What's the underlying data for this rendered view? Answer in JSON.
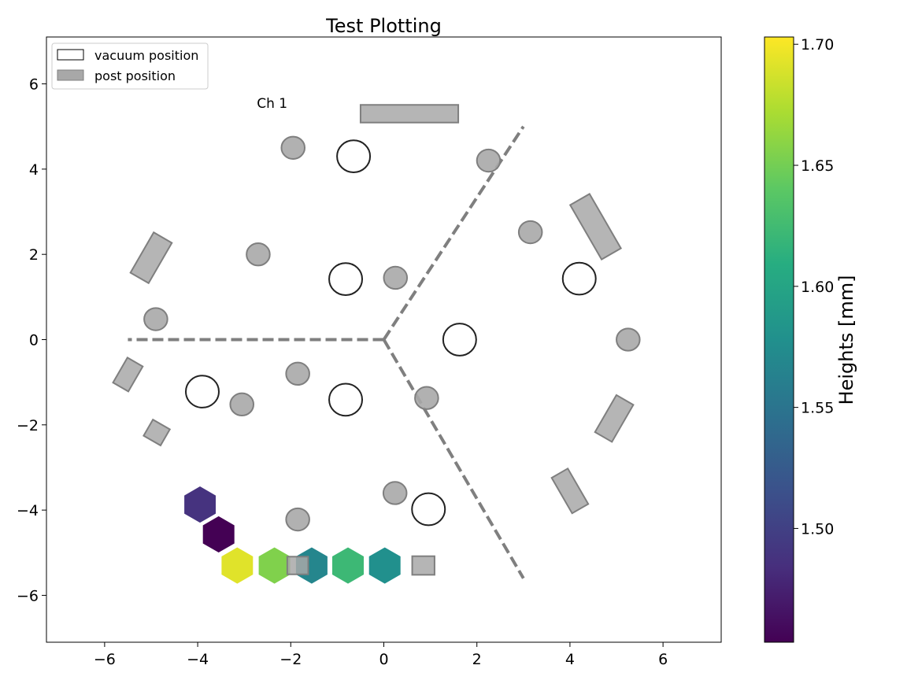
{
  "chart_data": {
    "type": "scatter",
    "title": "Test Plotting",
    "xlim": [
      -7.25,
      7.25
    ],
    "ylim": [
      -7.1,
      7.1
    ],
    "xticks": [
      -6,
      -4,
      -2,
      0,
      2,
      4,
      6
    ],
    "yticks": [
      -6,
      -4,
      -2,
      0,
      2,
      4,
      6
    ],
    "tick_labels": {
      "x": [
        "−6",
        "−4",
        "−2",
        "0",
        "2",
        "4",
        "6"
      ],
      "y": [
        "−6",
        "−4",
        "−2",
        "0",
        "2",
        "4",
        "6"
      ]
    },
    "grid": false,
    "legend": {
      "placement": "top-left",
      "entries": [
        {
          "label": "vacuum position",
          "style": "outline"
        },
        {
          "label": "post position",
          "style": "filled",
          "color": "#a8a8a8"
        }
      ]
    },
    "annotation": {
      "text": "Ch 1",
      "x": -2.4,
      "y": 5.55
    },
    "colorbar": {
      "label": "Heights [mm]",
      "colormap": "viridis",
      "range": [
        1.453,
        1.703
      ],
      "ticks": [
        1.5,
        1.55,
        1.6,
        1.65,
        1.7
      ],
      "tick_labels": [
        "1.50",
        "1.55",
        "1.60",
        "1.65",
        "1.70"
      ]
    },
    "colors": {
      "post": "#a8a8a8",
      "post_edge": "#7f7f7f",
      "divider": "#7f7f7f",
      "vacuum_edge": "#222222"
    },
    "vacuum_positions": [
      {
        "x": -0.65,
        "y": 4.3
      },
      {
        "x": -0.82,
        "y": 1.42
      },
      {
        "x": 4.2,
        "y": 1.43
      },
      {
        "x": 1.63,
        "y": 0.0
      },
      {
        "x": -3.9,
        "y": -1.22
      },
      {
        "x": -0.82,
        "y": -1.41
      },
      {
        "x": 0.96,
        "y": -3.98
      }
    ],
    "post_circles": [
      {
        "x": -1.95,
        "y": 4.5
      },
      {
        "x": 2.25,
        "y": 4.2
      },
      {
        "x": -2.7,
        "y": 2.0
      },
      {
        "x": 0.25,
        "y": 1.45
      },
      {
        "x": 3.15,
        "y": 2.52
      },
      {
        "x": -4.9,
        "y": 0.48
      },
      {
        "x": 5.25,
        "y": 0.0
      },
      {
        "x": -1.85,
        "y": -0.8
      },
      {
        "x": -3.05,
        "y": -1.52
      },
      {
        "x": 0.92,
        "y": -1.37
      },
      {
        "x": 0.24,
        "y": -3.6
      },
      {
        "x": -1.85,
        "y": -4.22
      }
    ],
    "post_rects": [
      {
        "x": 0.55,
        "y": 5.3,
        "w": 2.1,
        "h": 0.38,
        "angle": 0
      },
      {
        "x": -5.0,
        "y": 1.92,
        "w": 1.0,
        "h": 0.45,
        "angle": 60
      },
      {
        "x": 4.55,
        "y": 2.65,
        "w": 1.35,
        "h": 0.48,
        "angle": -60
      },
      {
        "x": -5.5,
        "y": -0.82,
        "w": 0.62,
        "h": 0.38,
        "angle": 60
      },
      {
        "x": 4.95,
        "y": -1.85,
        "w": 0.92,
        "h": 0.42,
        "angle": 60
      },
      {
        "x": -4.88,
        "y": -2.18,
        "w": 0.42,
        "h": 0.4,
        "angle": -30
      },
      {
        "x": 4.0,
        "y": -3.55,
        "w": 0.88,
        "h": 0.4,
        "angle": -60
      },
      {
        "x": 0.85,
        "y": -5.3,
        "w": 0.48,
        "h": 0.4,
        "angle": 0
      },
      {
        "x": -1.85,
        "y": -5.3,
        "w": 0.45,
        "h": 0.38,
        "angle": 0
      }
    ],
    "dividers": [
      {
        "x": [
          0,
          -5.5
        ],
        "y": [
          0,
          0
        ]
      },
      {
        "x": [
          0,
          3.0
        ],
        "y": [
          0,
          5.0
        ]
      },
      {
        "x": [
          0,
          3.0
        ],
        "y": [
          0,
          -5.6
        ]
      }
    ],
    "hexagons": [
      {
        "x": -3.95,
        "y": -3.87,
        "height": 1.488
      },
      {
        "x": -3.55,
        "y": -4.57,
        "height": 1.453
      },
      {
        "x": -3.15,
        "y": -5.3,
        "height": 1.692
      },
      {
        "x": -2.35,
        "y": -5.3,
        "height": 1.655
      },
      {
        "x": -1.55,
        "y": -5.3,
        "height": 1.568
      },
      {
        "x": -0.77,
        "y": -5.3,
        "height": 1.622
      },
      {
        "x": 0.02,
        "y": -5.3,
        "height": 1.578
      }
    ]
  }
}
